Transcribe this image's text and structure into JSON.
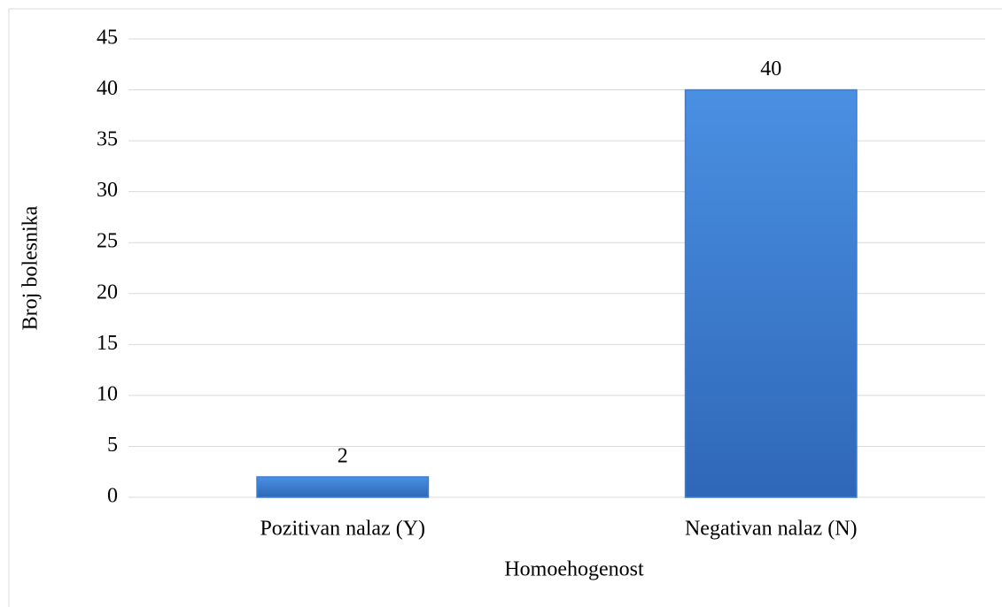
{
  "chart_data": {
    "type": "bar",
    "categories": [
      "Pozitivan nalaz (Y)",
      "Negativan nalaz (N)"
    ],
    "values": [
      2,
      40
    ],
    "color": "#3b7dd8",
    "xlabel": "Homoehogenost",
    "ylabel": "Broj bolesnika",
    "ylim": [
      0,
      45
    ],
    "yticks": [
      0,
      5,
      10,
      15,
      20,
      25,
      30,
      35,
      40,
      45
    ],
    "grid": true
  }
}
